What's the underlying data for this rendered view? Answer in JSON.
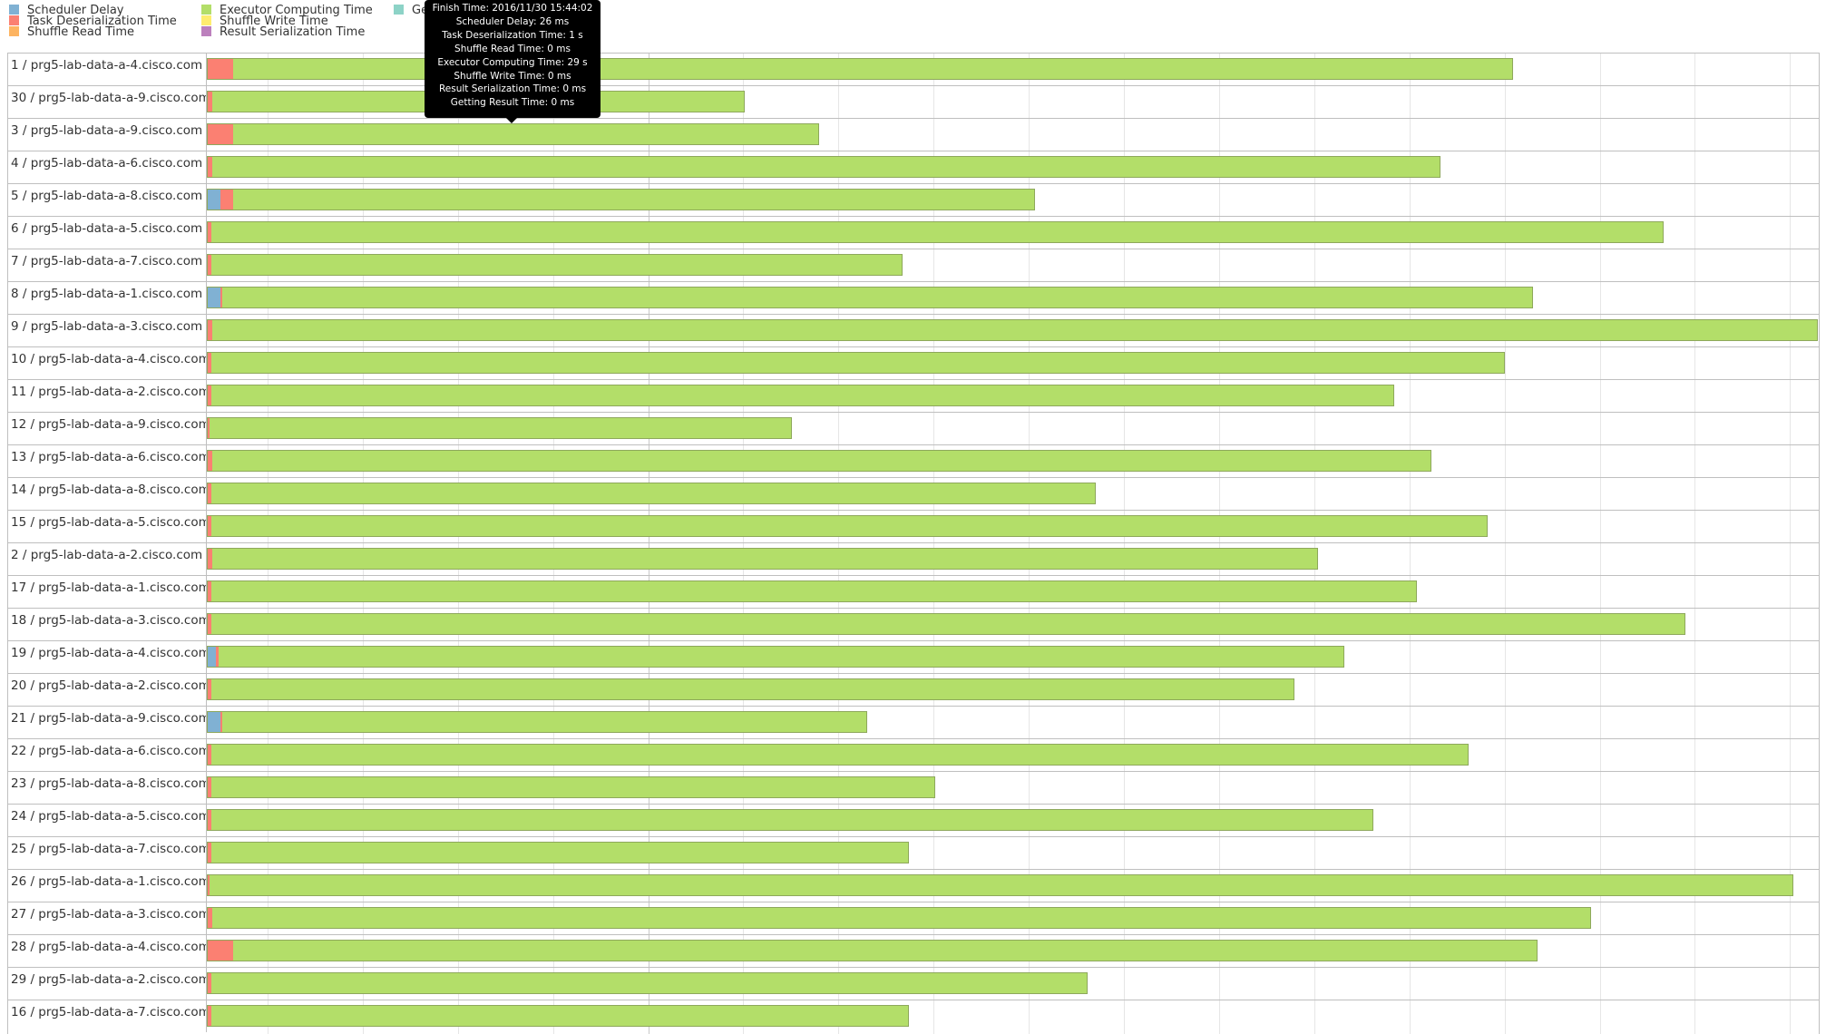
{
  "legend": {
    "items": [
      {
        "label": "Scheduler Delay",
        "color": "#80b1d3"
      },
      {
        "label": "Task Deserialization Time",
        "color": "#fb8072"
      },
      {
        "label": "Shuffle Read Time",
        "color": "#fdb462"
      },
      {
        "label": "Executor Computing Time",
        "color": "#b3de69"
      },
      {
        "label": "Shuffle Write Time",
        "color": "#ffed6f"
      },
      {
        "label": "Result Serialization Time",
        "color": "#bc80bd"
      },
      {
        "label": "Ge",
        "color": "#8dd3c7"
      }
    ]
  },
  "tooltip": {
    "lines": [
      "Finish Time: 2016/11/30 15:44:02",
      "Scheduler Delay: 26 ms",
      "Task Deserialization Time: 1 s",
      "Shuffle Read Time: 0 ms",
      "Executor Computing Time: 29 s",
      "Shuffle Write Time: 0 ms",
      "Result Serialization Time: 0 ms",
      "Getting Result Time: 0 ms"
    ]
  },
  "tasks": [
    {
      "label": "1 / prg5-lab-data-a-4.cisco.com",
      "sched": 0.0,
      "deser": 0.016,
      "exec": 0.795
    },
    {
      "label": "30 / prg5-lab-data-a-9.cisco.com",
      "sched": 0.0,
      "deser": 0.003,
      "exec": 0.331
    },
    {
      "label": "3 / prg5-lab-data-a-9.cisco.com",
      "sched": 0.0,
      "deser": 0.016,
      "exec": 0.364
    },
    {
      "label": "4 / prg5-lab-data-a-6.cisco.com",
      "sched": 0.0,
      "deser": 0.003,
      "exec": 0.763
    },
    {
      "label": "5 / prg5-lab-data-a-8.cisco.com",
      "sched": 0.008,
      "deser": 0.008,
      "exec": 0.498
    },
    {
      "label": "6 / prg5-lab-data-a-5.cisco.com",
      "sched": 0.0,
      "deser": 0.002,
      "exec": 0.902
    },
    {
      "label": "7 / prg5-lab-data-a-7.cisco.com",
      "sched": 0.0,
      "deser": 0.002,
      "exec": 0.43
    },
    {
      "label": "8 / prg5-lab-data-a-1.cisco.com",
      "sched": 0.008,
      "deser": 0.001,
      "exec": 0.814
    },
    {
      "label": "9 / prg5-lab-data-a-3.cisco.com",
      "sched": 0.0,
      "deser": 0.003,
      "exec": 0.997
    },
    {
      "label": "10 / prg5-lab-data-a-4.cisco.com",
      "sched": 0.0,
      "deser": 0.002,
      "exec": 0.804
    },
    {
      "label": "11 / prg5-lab-data-a-2.cisco.com",
      "sched": 0.0,
      "deser": 0.002,
      "exec": 0.735
    },
    {
      "label": "12 / prg5-lab-data-a-9.cisco.com",
      "sched": 0.0,
      "deser": 0.001,
      "exec": 0.362
    },
    {
      "label": "13 / prg5-lab-data-a-6.cisco.com",
      "sched": 0.0,
      "deser": 0.003,
      "exec": 0.757
    },
    {
      "label": "14 / prg5-lab-data-a-8.cisco.com",
      "sched": 0.0,
      "deser": 0.002,
      "exec": 0.55
    },
    {
      "label": "15 / prg5-lab-data-a-5.cisco.com",
      "sched": 0.0,
      "deser": 0.002,
      "exec": 0.793
    },
    {
      "label": "2 / prg5-lab-data-a-2.cisco.com",
      "sched": 0.0,
      "deser": 0.003,
      "exec": 0.687
    },
    {
      "label": "17 / prg5-lab-data-a-1.cisco.com",
      "sched": 0.0,
      "deser": 0.002,
      "exec": 0.749
    },
    {
      "label": "18 / prg5-lab-data-a-3.cisco.com",
      "sched": 0.0,
      "deser": 0.002,
      "exec": 0.916
    },
    {
      "label": "19 / prg5-lab-data-a-4.cisco.com",
      "sched": 0.005,
      "deser": 0.002,
      "exec": 0.699
    },
    {
      "label": "20 / prg5-lab-data-a-2.cisco.com",
      "sched": 0.0,
      "deser": 0.002,
      "exec": 0.673
    },
    {
      "label": "21 / prg5-lab-data-a-9.cisco.com",
      "sched": 0.008,
      "deser": 0.001,
      "exec": 0.401
    },
    {
      "label": "22 / prg5-lab-data-a-6.cisco.com",
      "sched": 0.0,
      "deser": 0.002,
      "exec": 0.781
    },
    {
      "label": "23 / prg5-lab-data-a-8.cisco.com",
      "sched": 0.0,
      "deser": 0.002,
      "exec": 0.45
    },
    {
      "label": "24 / prg5-lab-data-a-5.cisco.com",
      "sched": 0.0,
      "deser": 0.002,
      "exec": 0.722
    },
    {
      "label": "25 / prg5-lab-data-a-7.cisco.com",
      "sched": 0.0,
      "deser": 0.002,
      "exec": 0.434
    },
    {
      "label": "26 / prg5-lab-data-a-1.cisco.com",
      "sched": 0.0,
      "deser": 0.001,
      "exec": 0.984
    },
    {
      "label": "27 / prg5-lab-data-a-3.cisco.com",
      "sched": 0.0,
      "deser": 0.003,
      "exec": 0.856
    },
    {
      "label": "28 / prg5-lab-data-a-4.cisco.com",
      "sched": 0.0,
      "deser": 0.016,
      "exec": 0.81
    },
    {
      "label": "29 / prg5-lab-data-a-2.cisco.com",
      "sched": 0.0,
      "deser": 0.002,
      "exec": 0.545
    },
    {
      "label": "16 / prg5-lab-data-a-7.cisco.com",
      "sched": 0.0,
      "deser": 0.002,
      "exec": 0.434
    }
  ]
}
